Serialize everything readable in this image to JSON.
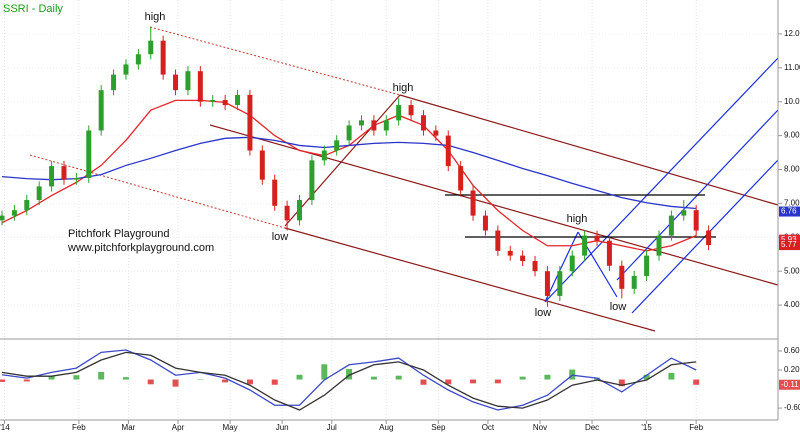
{
  "chart_data": [
    {
      "type": "candlestick",
      "title": "SSRI - Daily",
      "x": [
        0,
        5,
        10,
        15,
        20,
        25,
        30,
        35,
        40,
        45,
        50,
        55,
        60,
        65,
        70,
        75,
        80,
        85,
        90,
        95,
        100,
        105,
        110,
        115,
        120,
        125,
        130,
        135,
        140,
        145,
        150,
        155,
        160,
        165,
        170,
        175,
        180,
        185,
        190,
        195,
        200,
        205,
        210,
        215,
        220,
        225,
        230,
        235,
        240,
        245,
        250,
        255,
        260,
        265,
        270,
        275,
        280,
        285
      ],
      "open": [
        6.5,
        6.64,
        6.8,
        7.1,
        7.5,
        8.1,
        7.7,
        7.75,
        9.15,
        10.34,
        10.8,
        11.1,
        11.4,
        11.8,
        10.8,
        10.34,
        10.9,
        10.0,
        10.05,
        9.9,
        10.2,
        8.56,
        7.7,
        6.93,
        6.5,
        7.1,
        8.27,
        8.56,
        8.86,
        9.3,
        9.45,
        9.15,
        9.45,
        9.9,
        9.6,
        9.15,
        9.0,
        8.1,
        7.38,
        6.64,
        6.2,
        5.6,
        5.46,
        5.3,
        5.0,
        4.27,
        5.0,
        5.46,
        6.05,
        5.9,
        5.16,
        4.48,
        4.86,
        5.46,
        6.05,
        6.64,
        6.8,
        6.2
      ],
      "high": [
        6.79,
        6.95,
        7.25,
        7.65,
        8.25,
        8.25,
        7.9,
        9.3,
        10.49,
        10.95,
        11.25,
        11.55,
        12.2,
        11.95,
        10.95,
        11.05,
        11.05,
        10.2,
        10.2,
        10.35,
        10.35,
        8.71,
        7.85,
        7.08,
        7.25,
        8.42,
        8.71,
        9.01,
        9.45,
        9.6,
        9.6,
        9.6,
        10.1,
        10.05,
        9.75,
        9.3,
        9.15,
        8.25,
        7.53,
        6.79,
        6.35,
        5.75,
        5.61,
        5.45,
        5.15,
        5.15,
        5.61,
        6.2,
        6.2,
        6.05,
        5.31,
        5.01,
        5.61,
        6.2,
        6.79,
        7.1,
        6.95,
        6.35
      ],
      "low": [
        6.35,
        6.49,
        6.65,
        6.95,
        7.35,
        7.55,
        7.55,
        7.6,
        9.0,
        10.19,
        10.65,
        10.95,
        11.25,
        10.65,
        10.19,
        10.19,
        9.85,
        9.85,
        9.75,
        9.75,
        8.41,
        7.55,
        6.78,
        6.2,
        6.35,
        6.95,
        8.12,
        8.41,
        8.71,
        9.15,
        9.0,
        9.0,
        9.3,
        9.45,
        9.0,
        8.85,
        7.95,
        7.23,
        6.49,
        6.05,
        5.45,
        5.31,
        5.15,
        4.85,
        3.95,
        4.12,
        4.85,
        5.31,
        5.75,
        5.01,
        4.2,
        4.33,
        4.71,
        5.31,
        5.9,
        6.49,
        6.05,
        5.62
      ],
      "close": [
        6.64,
        6.8,
        7.1,
        7.5,
        8.1,
        7.7,
        7.75,
        9.15,
        10.34,
        10.8,
        11.1,
        11.4,
        11.8,
        10.8,
        10.34,
        10.9,
        10.0,
        10.05,
        9.9,
        10.2,
        8.56,
        7.7,
        6.93,
        6.5,
        7.1,
        8.27,
        8.56,
        8.86,
        9.3,
        9.45,
        9.15,
        9.45,
        9.9,
        9.6,
        9.15,
        9.0,
        8.1,
        7.38,
        6.64,
        6.2,
        5.6,
        5.46,
        5.3,
        5.0,
        4.27,
        5.0,
        5.46,
        6.05,
        5.9,
        5.16,
        4.48,
        4.86,
        5.46,
        6.05,
        6.64,
        6.8,
        6.2,
        5.77
      ],
      "last": 5.77,
      "up_color": "#2e9e2e",
      "down_color": "#d62020",
      "series": [
        {
          "color": "#e3262b",
          "last": 5.93,
          "x": [
            0,
            10,
            20,
            30,
            40,
            50,
            60,
            70,
            80,
            90,
            100,
            110,
            120,
            130,
            140,
            150,
            160,
            170,
            180,
            190,
            200,
            210,
            220,
            230,
            240,
            250,
            260,
            270,
            280
          ],
          "values": [
            6.43,
            6.79,
            7.23,
            7.62,
            8.12,
            8.86,
            9.75,
            10.04,
            10.04,
            9.98,
            9.6,
            9.0,
            8.56,
            8.41,
            8.71,
            9.3,
            9.6,
            9.3,
            8.56,
            7.53,
            6.79,
            6.2,
            5.75,
            5.75,
            5.9,
            5.75,
            5.6,
            5.75,
            6.05
          ]
        },
        {
          "color": "#2a35c9",
          "last": 6.76,
          "x": [
            0,
            10,
            20,
            30,
            40,
            50,
            60,
            70,
            80,
            90,
            100,
            110,
            120,
            130,
            140,
            150,
            160,
            170,
            180,
            190,
            200,
            210,
            220,
            230,
            240,
            250,
            260,
            270,
            280
          ],
          "values": [
            7.79,
            7.73,
            7.7,
            7.73,
            7.85,
            8.12,
            8.33,
            8.56,
            8.77,
            8.92,
            8.95,
            8.86,
            8.71,
            8.65,
            8.71,
            8.77,
            8.8,
            8.77,
            8.71,
            8.5,
            8.27,
            8.03,
            7.82,
            7.59,
            7.38,
            7.17,
            7.02,
            6.91,
            6.85
          ]
        }
      ],
      "annotations": [
        "high",
        "high",
        "low",
        "high",
        "low",
        "low",
        "Pitchfork Playground",
        "www.pitchforkplayground.com"
      ],
      "xlim": [
        0,
        313
      ],
      "xticks": [
        {
          "value": 1,
          "label": "'14"
        },
        {
          "value": 31,
          "label": "Feb"
        },
        {
          "value": 51,
          "label": "Mar"
        },
        {
          "value": 71,
          "label": "Apr"
        },
        {
          "value": 92,
          "label": "May"
        },
        {
          "value": 113,
          "label": "Jun"
        },
        {
          "value": 133,
          "label": "Jul"
        },
        {
          "value": 155,
          "label": "Aug"
        },
        {
          "value": 176,
          "label": "Sep"
        },
        {
          "value": 196,
          "label": "Oct"
        },
        {
          "value": 217,
          "label": "Nov"
        },
        {
          "value": 238,
          "label": "Dec"
        },
        {
          "value": 260,
          "label": "'15"
        },
        {
          "value": 280,
          "label": "Feb"
        }
      ],
      "ylim": [
        3,
        13
      ],
      "yticks": [
        {
          "value": 4,
          "label": "4.00"
        },
        {
          "value": 5,
          "label": "5.00"
        },
        {
          "value": 6,
          "label": "6.00"
        },
        {
          "value": 7,
          "label": "7.00"
        },
        {
          "value": 8,
          "label": "8.00"
        },
        {
          "value": 9,
          "label": "9.00"
        },
        {
          "value": 10,
          "label": "10.00"
        },
        {
          "value": 11,
          "label": "11.00"
        },
        {
          "value": 12,
          "label": "12.00"
        }
      ],
      "grid": true
    },
    {
      "type": "macd",
      "x": [
        0,
        10,
        20,
        30,
        40,
        50,
        60,
        70,
        80,
        90,
        100,
        110,
        120,
        130,
        140,
        150,
        160,
        170,
        180,
        190,
        200,
        210,
        220,
        230,
        240,
        250,
        260,
        270,
        280
      ],
      "series": [
        {
          "color": "#3b48c7",
          "values": [
            0.1,
            0.03,
            0.15,
            0.24,
            0.57,
            0.62,
            0.41,
            0.09,
            0.15,
            0.03,
            -0.22,
            -0.54,
            -0.54,
            -0.01,
            0.31,
            0.37,
            0.45,
            0.09,
            -0.22,
            -0.47,
            -0.64,
            -0.54,
            -0.33,
            0.09,
            0.03,
            -0.26,
            0.09,
            0.45,
            0.2
          ]
        },
        {
          "color": "#333333",
          "values": [
            0.15,
            0.07,
            0.07,
            0.15,
            0.41,
            0.57,
            0.51,
            0.24,
            0.15,
            0.09,
            -0.12,
            -0.43,
            -0.64,
            -0.33,
            0.09,
            0.31,
            0.37,
            0.2,
            -0.12,
            -0.39,
            -0.56,
            -0.6,
            -0.43,
            -0.12,
            -0.01,
            -0.12,
            -0.01,
            0.31,
            0.37
          ]
        }
      ],
      "histogram": {
        "up_color": "#5cb85c",
        "down_color": "#e05050",
        "values": [
          -0.05,
          -0.04,
          0.08,
          0.09,
          0.16,
          0.05,
          -0.1,
          -0.15,
          0,
          -0.06,
          -0.1,
          -0.11,
          0.1,
          0.32,
          0.22,
          0.06,
          0.08,
          -0.11,
          -0.1,
          -0.08,
          -0.08,
          0.06,
          0.1,
          0.21,
          0.04,
          -0.14,
          0.1,
          0.14,
          -0.11
        ]
      },
      "last": -0.11,
      "ylim": [
        -0.85,
        0.83
      ],
      "yticks": [
        {
          "value": 0.6,
          "label": "0.60"
        },
        {
          "value": 0.2,
          "label": "0.20"
        },
        {
          "value": -0.6,
          "label": "-0.60"
        }
      ]
    }
  ]
}
